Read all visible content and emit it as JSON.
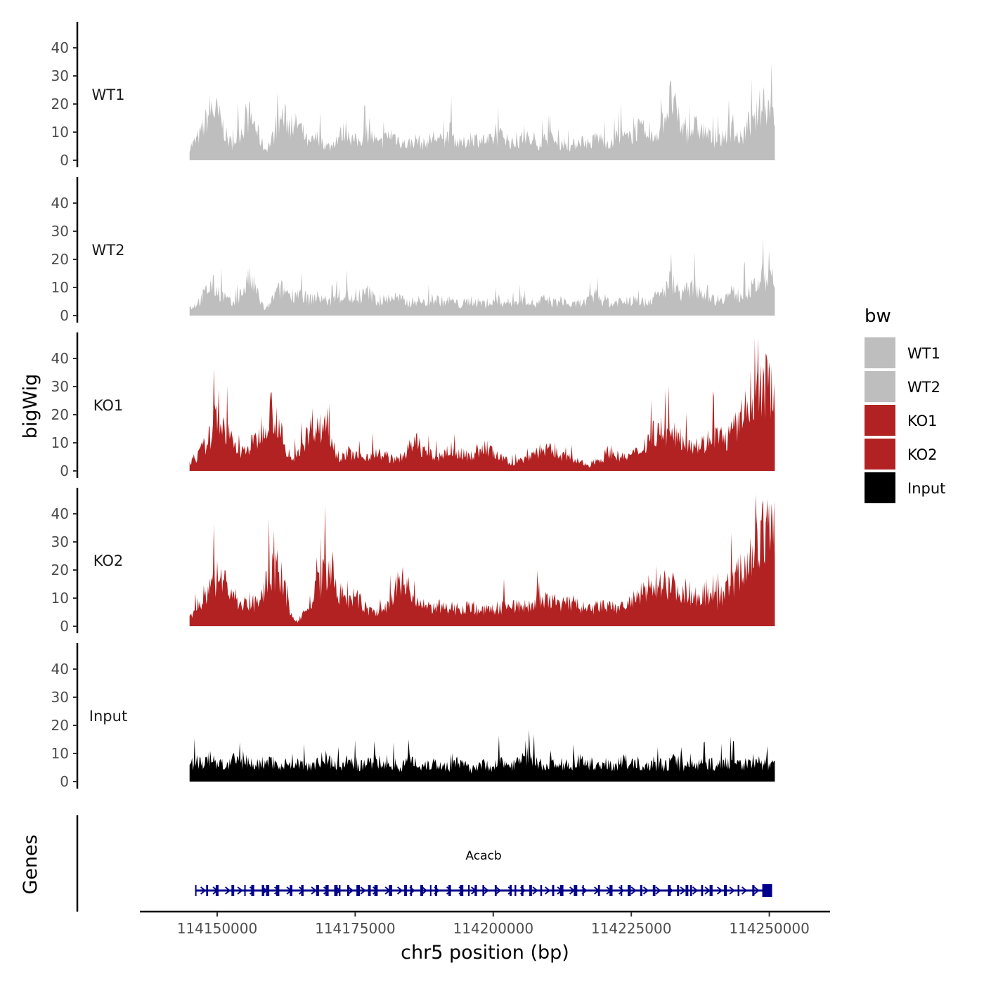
{
  "chart_data": {
    "type": "area",
    "ylabel": "bigWig",
    "xlabel": "chr5 position (bp)",
    "xlim": [
      114136000,
      114261000
    ],
    "data_range": [
      114145000,
      114251000
    ],
    "ylim": [
      0,
      48
    ],
    "yticks": [
      "0",
      "10",
      "20",
      "30",
      "40"
    ],
    "xticks": [
      {
        "value": 114150000,
        "label": "114150000"
      },
      {
        "value": 114175000,
        "label": "114175000"
      },
      {
        "value": 114200000,
        "label": "114200000"
      },
      {
        "value": 114225000,
        "label": "114225000"
      },
      {
        "value": 114250000,
        "label": "114250000"
      }
    ],
    "tracks": [
      {
        "name": "WT1",
        "color": "#BEBEBE",
        "profile": [
          5,
          7,
          10,
          15,
          20,
          18,
          14,
          8,
          6,
          10,
          13,
          17,
          14,
          8,
          4,
          7,
          12,
          17,
          15,
          12,
          14,
          10,
          6,
          8,
          9,
          6,
          5,
          8,
          10,
          12,
          8,
          7,
          9,
          11,
          8,
          6,
          8,
          10,
          9,
          7,
          6,
          7,
          8,
          6,
          7,
          9,
          8,
          7,
          11,
          8,
          6,
          7,
          9,
          8,
          8,
          7,
          8,
          9,
          10,
          7,
          6,
          8,
          9,
          7,
          6,
          7,
          9,
          8,
          6,
          7,
          5,
          6,
          8,
          7,
          6,
          9,
          8,
          7,
          6,
          10,
          9,
          8,
          11,
          12,
          9,
          8,
          10,
          13,
          19,
          24,
          16,
          12,
          10,
          13,
          12,
          11,
          9,
          7,
          8,
          10,
          12,
          9,
          8,
          14,
          13,
          19,
          23,
          20,
          18
        ]
      },
      {
        "name": "WT2",
        "color": "#BEBEBE",
        "profile": [
          3,
          4,
          6,
          9,
          12,
          10,
          8,
          6,
          4,
          7,
          10,
          14,
          11,
          6,
          2,
          5,
          9,
          10,
          9,
          8,
          9,
          8,
          6,
          7,
          7,
          6,
          5,
          7,
          7,
          8,
          6,
          5,
          8,
          9,
          7,
          5,
          6,
          7,
          7,
          6,
          5,
          5,
          6,
          5,
          5,
          6,
          6,
          5,
          6,
          5,
          4,
          5,
          6,
          5,
          5,
          4,
          5,
          6,
          5,
          5,
          5,
          6,
          7,
          5,
          4,
          6,
          6,
          5,
          5,
          6,
          4,
          4,
          5,
          5,
          6,
          8,
          6,
          6,
          4,
          6,
          5,
          5,
          6,
          6,
          5,
          6,
          7,
          8,
          11,
          14,
          10,
          9,
          9,
          11,
          10,
          9,
          8,
          6,
          7,
          7,
          9,
          8,
          8,
          10,
          10,
          13,
          15,
          14,
          13
        ]
      },
      {
        "name": "KO1",
        "color": "#B22222",
        "profile": [
          3,
          5,
          9,
          13,
          22,
          17,
          12,
          7,
          8,
          10,
          13,
          20,
          24,
          18,
          6,
          4,
          9,
          13,
          19,
          16,
          20,
          9,
          5,
          7,
          6,
          5,
          6,
          7,
          6,
          5,
          4,
          6,
          9,
          11,
          8,
          6,
          5,
          7,
          8,
          7,
          6,
          6,
          8,
          9,
          7,
          5,
          4,
          3,
          4,
          5,
          7,
          8,
          8,
          7,
          6,
          5,
          4,
          3,
          2,
          4,
          5,
          8,
          6,
          5,
          6,
          7,
          10,
          14,
          16,
          15,
          13,
          14,
          12,
          11,
          10,
          11,
          14,
          13,
          12,
          16,
          19,
          26,
          30,
          31,
          33,
          32
        ]
      },
      {
        "name": "KO2",
        "color": "#B22222",
        "profile": [
          4,
          7,
          12,
          16,
          19,
          17,
          12,
          9,
          8,
          9,
          12,
          18,
          22,
          16,
          4,
          2,
          6,
          10,
          17,
          21,
          15,
          12,
          10,
          11,
          8,
          6,
          5,
          7,
          10,
          18,
          15,
          10,
          8,
          7,
          8,
          7,
          6,
          7,
          7,
          8,
          6,
          6,
          7,
          7,
          9,
          8,
          7,
          8,
          9,
          10,
          9,
          10,
          8,
          9,
          8,
          6,
          7,
          8,
          7,
          7,
          8,
          9,
          11,
          13,
          16,
          18,
          17,
          15,
          14,
          13,
          12,
          13,
          11,
          10,
          14,
          16,
          20,
          24,
          30,
          33,
          37,
          42
        ]
      },
      {
        "name": "Input",
        "color": "#000000",
        "profile": [
          6,
          8,
          7,
          9,
          7,
          6,
          8,
          7,
          8,
          6,
          7,
          8,
          7,
          6,
          8,
          7,
          6,
          7,
          8,
          9,
          7,
          6,
          8,
          7,
          6,
          7,
          8,
          6,
          7,
          6,
          7,
          8,
          6,
          7,
          7,
          6,
          6,
          7,
          6,
          5,
          7,
          6,
          6,
          8,
          6,
          7,
          8,
          11,
          7,
          6,
          7,
          6,
          6,
          7,
          8,
          6,
          7,
          6,
          7,
          6,
          8,
          7,
          6,
          7,
          6,
          7,
          6,
          8,
          6,
          7,
          6,
          7,
          7,
          6,
          7,
          8,
          7,
          7,
          8,
          7,
          7,
          6
        ]
      }
    ],
    "genes": [
      {
        "name": "Acacb",
        "strand": "+",
        "start": 114146000,
        "end": 114250500,
        "color": "#00008B"
      }
    ],
    "gene_track_label": "Genes",
    "legend": {
      "title": "bw",
      "entries": [
        {
          "label": "WT1",
          "color": "#BEBEBE"
        },
        {
          "label": "WT2",
          "color": "#BEBEBE"
        },
        {
          "label": "KO1",
          "color": "#B22222"
        },
        {
          "label": "KO2",
          "color": "#B22222"
        },
        {
          "label": "Input",
          "color": "#000000"
        }
      ]
    }
  }
}
